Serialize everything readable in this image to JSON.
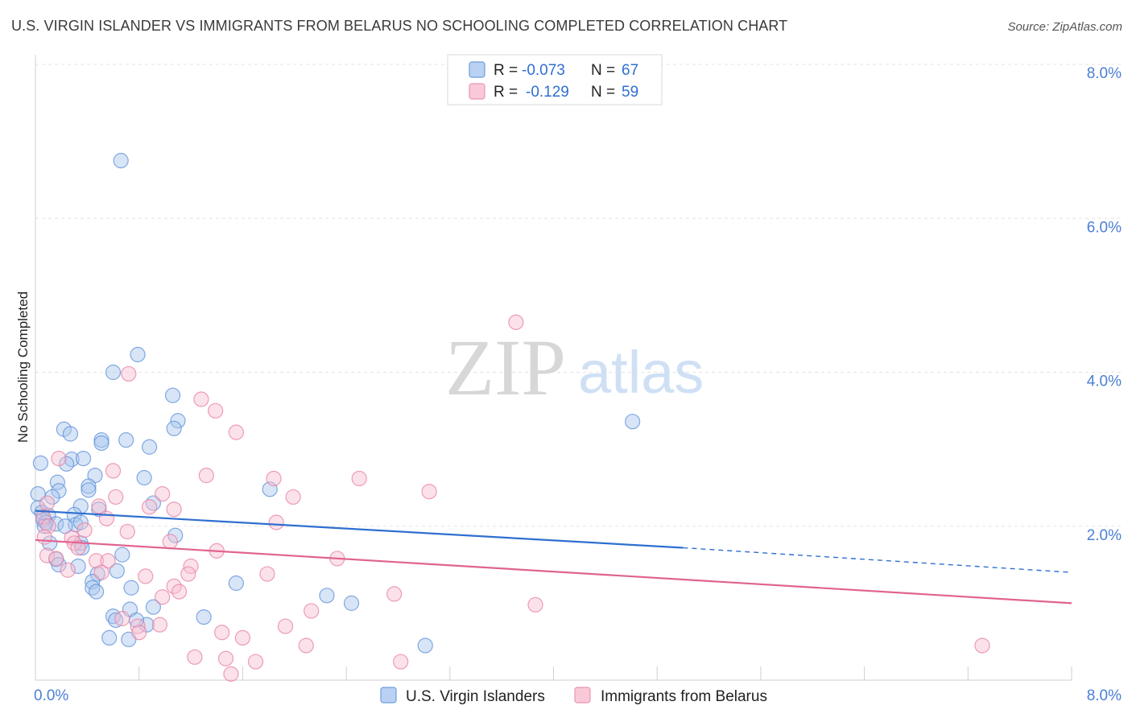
{
  "header": {
    "title": "U.S. VIRGIN ISLANDER VS IMMIGRANTS FROM BELARUS NO SCHOOLING COMPLETED CORRELATION CHART",
    "source": "Source: ZipAtlas.com"
  },
  "watermark": {
    "zip": "ZIP",
    "atlas": "atlas"
  },
  "chart_data": {
    "type": "scatter",
    "title": "U.S. VIRGIN ISLANDER VS IMMIGRANTS FROM BELARUS NO SCHOOLING COMPLETED CORRELATION CHART",
    "xlabel": "",
    "ylabel": "No Schooling Completed",
    "xlim": [
      0,
      8
    ],
    "ylim": [
      0,
      8
    ],
    "x_tick_labels": [
      "0.0%",
      "8.0%"
    ],
    "y_ticks": [
      2,
      4,
      6,
      8
    ],
    "y_tick_labels": [
      "2.0%",
      "4.0%",
      "6.0%",
      "8.0%"
    ],
    "grid": true,
    "legend_position": "top-center",
    "stats": [
      {
        "r_label": "R =",
        "r_value": "-0.073",
        "n_label": "N =",
        "n_value": "67"
      },
      {
        "r_label": "R =",
        "r_value": "-0.129",
        "n_label": "N =",
        "n_value": "59"
      }
    ],
    "series": [
      {
        "name": "U.S. Virgin Islanders",
        "color": "#5b8fd8",
        "fill": "#a9c6ee",
        "trend": {
          "x": [
            0,
            5.0,
            8.0
          ],
          "y": [
            2.2,
            1.72,
            1.4
          ],
          "solid_until": 5.0,
          "color": "#2f6fd0"
        },
        "points": [
          [
            0.66,
            6.75
          ],
          [
            0.79,
            4.23
          ],
          [
            0.6,
            4.0
          ],
          [
            1.06,
            3.7
          ],
          [
            1.1,
            3.37
          ],
          [
            0.22,
            3.26
          ],
          [
            0.27,
            3.2
          ],
          [
            0.51,
            3.12
          ],
          [
            0.7,
            3.12
          ],
          [
            0.88,
            3.03
          ],
          [
            1.07,
            3.27
          ],
          [
            0.51,
            3.08
          ],
          [
            0.04,
            2.82
          ],
          [
            0.28,
            2.87
          ],
          [
            0.37,
            2.88
          ],
          [
            0.24,
            2.81
          ],
          [
            0.46,
            2.66
          ],
          [
            0.84,
            2.63
          ],
          [
            0.17,
            2.57
          ],
          [
            0.41,
            2.52
          ],
          [
            0.41,
            2.47
          ],
          [
            0.18,
            2.46
          ],
          [
            0.02,
            2.42
          ],
          [
            0.13,
            2.38
          ],
          [
            0.02,
            2.24
          ],
          [
            0.49,
            2.22
          ],
          [
            0.35,
            2.26
          ],
          [
            0.91,
            2.3
          ],
          [
            1.81,
            2.48
          ],
          [
            0.05,
            2.18
          ],
          [
            0.1,
            2.14
          ],
          [
            0.3,
            2.15
          ],
          [
            0.06,
            2.08
          ],
          [
            0.16,
            2.03
          ],
          [
            0.31,
            2.02
          ],
          [
            0.08,
            2.05
          ],
          [
            0.35,
            2.05
          ],
          [
            0.07,
            2.0
          ],
          [
            0.23,
            2.0
          ],
          [
            0.11,
            1.78
          ],
          [
            1.08,
            1.88
          ],
          [
            0.35,
            1.78
          ],
          [
            0.36,
            1.72
          ],
          [
            0.67,
            1.63
          ],
          [
            0.16,
            1.57
          ],
          [
            0.33,
            1.48
          ],
          [
            0.18,
            1.5
          ],
          [
            0.63,
            1.42
          ],
          [
            0.48,
            1.38
          ],
          [
            0.44,
            1.28
          ],
          [
            0.44,
            1.2
          ],
          [
            0.74,
            1.2
          ],
          [
            0.91,
            0.95
          ],
          [
            1.55,
            1.26
          ],
          [
            0.47,
            1.15
          ],
          [
            2.25,
            1.1
          ],
          [
            2.44,
            1.0
          ],
          [
            0.73,
            0.92
          ],
          [
            0.86,
            0.72
          ],
          [
            0.6,
            0.83
          ],
          [
            0.62,
            0.78
          ],
          [
            0.78,
            0.78
          ],
          [
            1.3,
            0.82
          ],
          [
            0.57,
            0.55
          ],
          [
            0.72,
            0.53
          ],
          [
            3.01,
            0.45
          ],
          [
            4.61,
            3.36
          ]
        ]
      },
      {
        "name": "Immigrants from Belarus",
        "color": "#e87da2",
        "fill": "#f6bfd1",
        "trend": {
          "x": [
            0,
            8.0
          ],
          "y": [
            1.82,
            1.0
          ],
          "solid_until": 8.0,
          "color": "#e0638f"
        },
        "points": [
          [
            3.71,
            4.65
          ],
          [
            0.72,
            3.98
          ],
          [
            1.28,
            3.65
          ],
          [
            1.39,
            3.5
          ],
          [
            1.55,
            3.22
          ],
          [
            0.18,
            2.88
          ],
          [
            0.6,
            2.72
          ],
          [
            1.32,
            2.66
          ],
          [
            1.84,
            2.62
          ],
          [
            2.5,
            2.62
          ],
          [
            3.04,
            2.45
          ],
          [
            0.62,
            2.38
          ],
          [
            0.98,
            2.42
          ],
          [
            1.99,
            2.38
          ],
          [
            0.09,
            2.3
          ],
          [
            0.49,
            2.26
          ],
          [
            0.88,
            2.25
          ],
          [
            1.07,
            2.22
          ],
          [
            0.55,
            2.1
          ],
          [
            1.86,
            2.05
          ],
          [
            0.06,
            2.12
          ],
          [
            0.1,
            2.0
          ],
          [
            0.38,
            1.95
          ],
          [
            0.71,
            1.93
          ],
          [
            0.07,
            1.86
          ],
          [
            0.28,
            1.85
          ],
          [
            0.3,
            1.78
          ],
          [
            1.04,
            1.8
          ],
          [
            0.33,
            1.72
          ],
          [
            1.4,
            1.68
          ],
          [
            0.09,
            1.62
          ],
          [
            0.16,
            1.58
          ],
          [
            0.47,
            1.55
          ],
          [
            0.56,
            1.55
          ],
          [
            2.33,
            1.58
          ],
          [
            0.25,
            1.43
          ],
          [
            1.2,
            1.48
          ],
          [
            0.51,
            1.4
          ],
          [
            1.18,
            1.38
          ],
          [
            0.85,
            1.35
          ],
          [
            1.79,
            1.38
          ],
          [
            1.07,
            1.22
          ],
          [
            1.11,
            1.15
          ],
          [
            2.77,
            1.12
          ],
          [
            0.98,
            1.08
          ],
          [
            3.86,
            0.98
          ],
          [
            2.13,
            0.9
          ],
          [
            0.67,
            0.8
          ],
          [
            0.79,
            0.7
          ],
          [
            0.96,
            0.72
          ],
          [
            1.93,
            0.7
          ],
          [
            0.8,
            0.62
          ],
          [
            1.44,
            0.62
          ],
          [
            1.6,
            0.55
          ],
          [
            2.09,
            0.45
          ],
          [
            1.23,
            0.3
          ],
          [
            1.47,
            0.28
          ],
          [
            1.7,
            0.24
          ],
          [
            2.82,
            0.24
          ],
          [
            1.51,
            0.08
          ],
          [
            7.31,
            0.45
          ]
        ]
      }
    ]
  }
}
